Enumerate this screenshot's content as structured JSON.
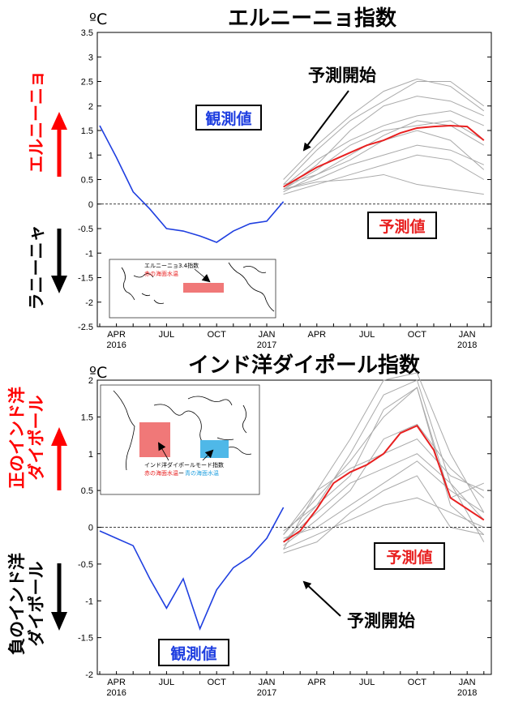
{
  "chart_data": [
    {
      "type": "line",
      "title": "エルニーニョ指数",
      "unit": "ºC",
      "ylim": [
        -2.5,
        3.5
      ],
      "yticks": [
        3.5,
        3,
        2.5,
        2,
        1.5,
        1,
        0.5,
        0,
        -0.5,
        -1,
        -1.5,
        -2,
        -2.5
      ],
      "xticks": [
        {
          "month": "APR",
          "year": "2016"
        },
        {
          "month": "JUL",
          "year": ""
        },
        {
          "month": "OCT",
          "year": ""
        },
        {
          "month": "JAN",
          "year": "2017"
        },
        {
          "month": "APR",
          "year": ""
        },
        {
          "month": "JUL",
          "year": ""
        },
        {
          "month": "OCT",
          "year": ""
        },
        {
          "month": "JAN",
          "year": "2018"
        }
      ],
      "grid": false,
      "observed": {
        "color": "#1f3fe0",
        "x": [
          "2016-03",
          "2016-04",
          "2016-05",
          "2016-06",
          "2016-07",
          "2016-08",
          "2016-09",
          "2016-10",
          "2016-11",
          "2016-12",
          "2017-01",
          "2017-02"
        ],
        "values": [
          1.6,
          0.95,
          0.25,
          -0.1,
          -0.5,
          -0.55,
          -0.65,
          -0.78,
          -0.55,
          -0.4,
          -0.35,
          0.05
        ]
      },
      "forecast_mean": {
        "color": "#e82020",
        "x": [
          "2017-02",
          "2017-03",
          "2017-04",
          "2017-05",
          "2017-06",
          "2017-07",
          "2017-08",
          "2017-09",
          "2017-10",
          "2017-11",
          "2017-12",
          "2018-01",
          "2018-02"
        ],
        "values": [
          0.35,
          0.55,
          0.75,
          0.9,
          1.05,
          1.2,
          1.3,
          1.45,
          1.55,
          1.58,
          1.6,
          1.58,
          1.3
        ]
      },
      "forecast_members": {
        "color": "#aaaaaa",
        "x": [
          "2017-02",
          "2017-04",
          "2017-06",
          "2017-08",
          "2017-10",
          "2017-12",
          "2018-02"
        ],
        "series": [
          [
            0.4,
            1.1,
            1.7,
            2.1,
            2.5,
            2.5,
            2.0
          ],
          [
            0.5,
            1.2,
            1.8,
            2.3,
            2.55,
            2.4,
            1.9
          ],
          [
            0.3,
            0.8,
            1.5,
            2.0,
            2.2,
            2.1,
            1.8
          ],
          [
            0.35,
            0.9,
            1.3,
            1.6,
            1.8,
            1.9,
            1.6
          ],
          [
            0.25,
            0.6,
            1.0,
            1.4,
            1.7,
            1.6,
            1.2
          ],
          [
            0.3,
            0.5,
            0.8,
            1.0,
            1.2,
            1.1,
            0.8
          ],
          [
            0.2,
            0.4,
            0.6,
            0.8,
            1.0,
            0.9,
            0.5
          ],
          [
            0.3,
            0.45,
            0.5,
            0.6,
            0.4,
            0.3,
            0.2
          ],
          [
            0.4,
            0.6,
            0.9,
            1.3,
            1.5,
            1.3,
            0.7
          ],
          [
            0.3,
            0.7,
            1.2,
            1.5,
            1.6,
            1.7,
            1.3
          ]
        ]
      },
      "zero_line": 0,
      "annotations": {
        "side_positive": "エルニーニョ",
        "side_negative": "ラニーニャ",
        "observed_label": "観測値",
        "forecast_label": "予測値",
        "forecast_start": "予測開始"
      },
      "inset": {
        "label1": "エルニーニョ3.4指数",
        "label2": "赤の海面水温"
      }
    },
    {
      "type": "line",
      "title": "インド洋ダイポール指数",
      "unit": "ºC",
      "ylim": [
        -2,
        2
      ],
      "yticks": [
        2,
        1.5,
        1,
        0.5,
        0,
        -0.5,
        -1,
        -1.5,
        -2
      ],
      "xticks": [
        {
          "month": "APR",
          "year": "2016"
        },
        {
          "month": "JUL",
          "year": ""
        },
        {
          "month": "OCT",
          "year": ""
        },
        {
          "month": "JAN",
          "year": "2017"
        },
        {
          "month": "APR",
          "year": ""
        },
        {
          "month": "JUL",
          "year": ""
        },
        {
          "month": "OCT",
          "year": ""
        },
        {
          "month": "JAN",
          "year": "2018"
        }
      ],
      "grid": false,
      "observed": {
        "color": "#1f3fe0",
        "x": [
          "2016-03",
          "2016-04",
          "2016-05",
          "2016-06",
          "2016-07",
          "2016-08",
          "2016-09",
          "2016-10",
          "2016-11",
          "2016-12",
          "2017-01",
          "2017-02"
        ],
        "values": [
          -0.05,
          -0.15,
          -0.25,
          -0.7,
          -1.1,
          -0.7,
          -1.38,
          -0.85,
          -0.55,
          -0.4,
          -0.15,
          0.27
        ]
      },
      "forecast_mean": {
        "color": "#e82020",
        "x": [
          "2017-02",
          "2017-03",
          "2017-04",
          "2017-05",
          "2017-06",
          "2017-07",
          "2017-08",
          "2017-09",
          "2017-10",
          "2017-11",
          "2017-12",
          "2018-01",
          "2018-02"
        ],
        "values": [
          -0.2,
          -0.05,
          0.25,
          0.6,
          0.75,
          0.85,
          1.0,
          1.28,
          1.38,
          1.05,
          0.4,
          0.25,
          0.1
        ]
      },
      "forecast_members": {
        "color": "#aaaaaa",
        "x": [
          "2017-02",
          "2017-04",
          "2017-06",
          "2017-08",
          "2017-10",
          "2017-12",
          "2018-02"
        ],
        "series": [
          [
            -0.3,
            0.5,
            1.2,
            2.0,
            2.1,
            1.0,
            0.2
          ],
          [
            -0.2,
            0.3,
            1.0,
            1.8,
            2.0,
            0.6,
            0.1
          ],
          [
            -0.1,
            0.4,
            0.9,
            1.5,
            1.9,
            0.3,
            -0.1
          ],
          [
            -0.25,
            0.1,
            0.5,
            1.2,
            1.4,
            0.8,
            0.4
          ],
          [
            -0.15,
            0.0,
            0.3,
            0.6,
            0.9,
            0.5,
            0.2
          ],
          [
            -0.3,
            -0.1,
            0.1,
            0.3,
            0.4,
            0.2,
            0.0
          ],
          [
            -0.2,
            0.2,
            0.6,
            0.8,
            1.0,
            0.6,
            -0.2
          ],
          [
            -0.1,
            0.5,
            0.8,
            1.0,
            1.2,
            0.7,
            0.5
          ],
          [
            -0.05,
            0.3,
            0.7,
            1.6,
            1.9,
            0.4,
            0.6
          ],
          [
            -0.35,
            -0.2,
            0.2,
            0.5,
            0.7,
            0.0,
            -0.1
          ]
        ]
      },
      "zero_line": 0,
      "annotations": {
        "side_positive_line1": "正のインド洋",
        "side_positive_line2": "ダイポール",
        "side_negative_line1": "負のインド洋",
        "side_negative_line2": "ダイポール",
        "observed_label": "観測値",
        "forecast_label": "予測値",
        "forecast_start": "予測開始"
      },
      "inset": {
        "label1": "インド洋ダイポールモード指数",
        "label2_red": "赤の海面水温",
        "label2_sep": "ー",
        "label2_blue": "青の海面水温"
      }
    }
  ],
  "colors": {
    "observed": "#1f3fe0",
    "forecast_mean": "#e82020",
    "members": "#aaaaaa",
    "positive": "#ff0000",
    "negative": "#000000",
    "box_red": "#f07878",
    "box_blue": "#4fb8e8"
  }
}
